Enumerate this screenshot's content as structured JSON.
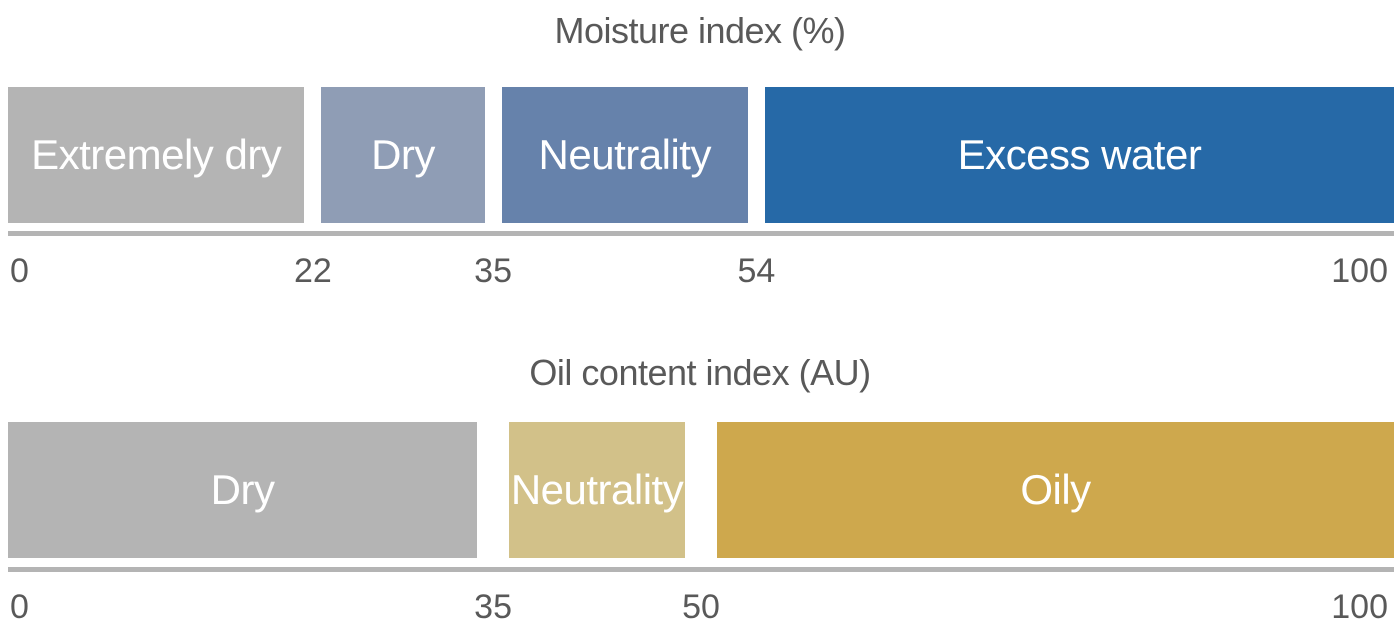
{
  "chart_data": [
    {
      "type": "bar",
      "title": "Moisture index (%)",
      "xlim": [
        0,
        100
      ],
      "ticks": [
        "0",
        "22",
        "35",
        "54",
        "100"
      ],
      "segments": [
        {
          "label": "Extremely dry",
          "start": 0,
          "end": 22,
          "color": "#b4b4b4"
        },
        {
          "label": "Dry",
          "start": 22,
          "end": 35,
          "color": "#8f9db5"
        },
        {
          "label": "Neutrality",
          "start": 35,
          "end": 54,
          "color": "#6682ab"
        },
        {
          "label": "Excess water",
          "start": 54,
          "end": 100,
          "color": "#2669a7"
        }
      ]
    },
    {
      "type": "bar",
      "title": "Oil content index (AU)",
      "xlim": [
        0,
        100
      ],
      "ticks": [
        "0",
        "35",
        "50",
        "100"
      ],
      "segments": [
        {
          "label": "Dry",
          "start": 0,
          "end": 35,
          "color": "#b4b4b4"
        },
        {
          "label": "Neutrality",
          "start": 35,
          "end": 50,
          "color": "#d2c189"
        },
        {
          "label": "Oily",
          "start": 50,
          "end": 100,
          "color": "#cea84d"
        }
      ]
    }
  ]
}
